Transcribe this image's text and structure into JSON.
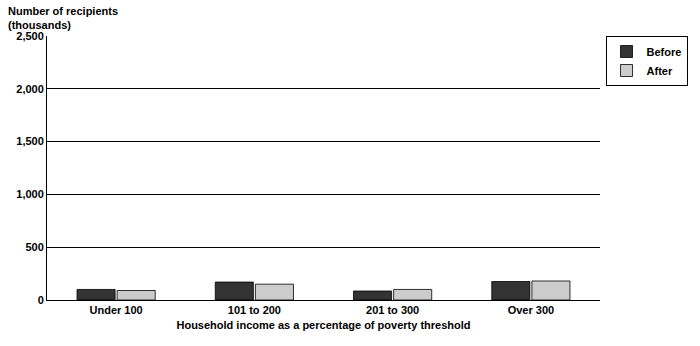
{
  "chart_data": {
    "type": "bar",
    "y_label": "Number of recipients (thousands)",
    "x_label": "Household income as a percentage of poverty threshold",
    "categories": [
      "Under 100",
      "101 to 200",
      "201 to 300",
      "Over 300"
    ],
    "series": [
      {
        "name": "Before",
        "color": "#333333",
        "values": [
          100,
          170,
          85,
          175
        ]
      },
      {
        "name": "After",
        "color": "#cccccc",
        "values": [
          90,
          150,
          100,
          180
        ]
      }
    ],
    "ylim": [
      0,
      2500
    ],
    "yticks": [
      0,
      500,
      {
        "value": 1000,
        "label": "1,000"
      },
      {
        "value": 1500,
        "label": "1,500"
      },
      {
        "value": 2000,
        "label": "2,000"
      },
      {
        "value": 2500,
        "label": "2,500"
      }
    ],
    "grid": true,
    "legend": "top-right"
  }
}
